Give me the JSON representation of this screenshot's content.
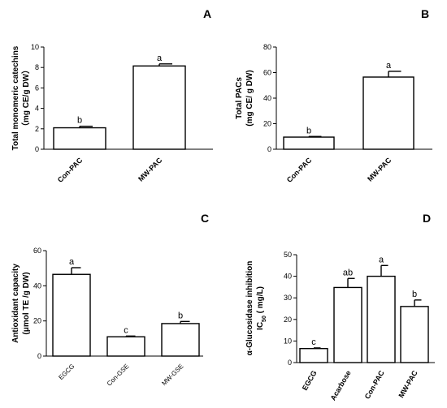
{
  "chart_data": [
    {
      "type": "bar",
      "panel": "A",
      "ylabel_lines": [
        "Total monomeric catechins",
        "（mg CE/g DW）"
      ],
      "categories": [
        "Con-PAC",
        "MW-PAC"
      ],
      "values": [
        2.1,
        8.15
      ],
      "errors": [
        0.15,
        0.2
      ],
      "significance": [
        "b",
        "a"
      ],
      "ylim": [
        0,
        10
      ],
      "yticks": [
        "0",
        "2",
        "4",
        "6",
        "8",
        "10"
      ],
      "ytick_values": [
        0,
        2,
        4,
        6,
        8,
        10
      ]
    },
    {
      "type": "bar",
      "panel": "B",
      "ylabel_lines": [
        "Total PACs",
        "(mg CE/ g DW)"
      ],
      "categories": [
        "Con-PAC",
        "MW-PAC"
      ],
      "values": [
        9.5,
        56.5
      ],
      "errors": [
        0.5,
        4.5
      ],
      "significance": [
        "b",
        "a"
      ],
      "ylim": [
        0,
        80
      ],
      "yticks": [
        "0",
        "20",
        "40",
        "60",
        "80"
      ],
      "ytick_values": [
        0,
        20,
        40,
        60,
        80
      ]
    },
    {
      "type": "bar",
      "panel": "C",
      "ylabel_lines": [
        "Antioxidant capacity",
        "(μmol TE /g DW)"
      ],
      "categories": [
        "EGCG",
        "Con-GSE",
        "MW-GSE"
      ],
      "values": [
        46.5,
        11.0,
        18.5
      ],
      "errors": [
        3.8,
        0.4,
        1.2
      ],
      "significance": [
        "a",
        "c",
        "b"
      ],
      "ylim": [
        0,
        60
      ],
      "yticks": [
        "0",
        "20",
        "40",
        "60"
      ],
      "ytick_values": [
        0,
        20,
        40,
        60
      ]
    },
    {
      "type": "bar",
      "panel": "D",
      "ylabel_lines": [
        "α-Glucosidase inhibition",
        "IC50 ( mg/L)"
      ],
      "categories": [
        "EGCG",
        "Acarbose",
        "Con-PAC",
        "MW-PAC"
      ],
      "values": [
        6.5,
        34.8,
        40.0,
        26.0
      ],
      "errors": [
        0.3,
        4.2,
        5.0,
        3.0
      ],
      "significance": [
        "c",
        "ab",
        "a",
        "b"
      ],
      "ylim": [
        0,
        50
      ],
      "yticks": [
        "0",
        "10",
        "20",
        "30",
        "40",
        "50"
      ],
      "ytick_values": [
        0,
        10,
        20,
        30,
        40,
        50
      ]
    }
  ]
}
